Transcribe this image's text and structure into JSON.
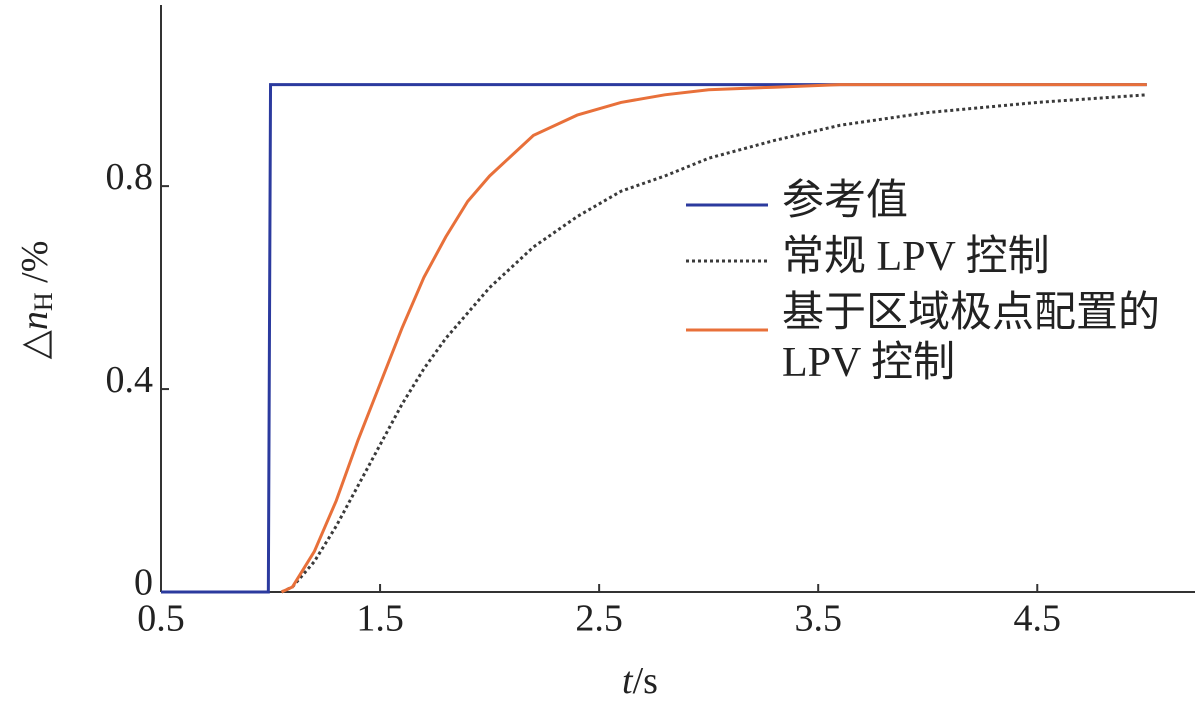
{
  "chart_data": {
    "type": "line",
    "ylabel": [
      "△",
      "n",
      "H",
      " /%"
    ],
    "xlabel": [
      "t",
      "/s"
    ],
    "x": [
      0.5,
      0.99,
      1.0,
      1.05,
      1.1,
      1.2,
      1.3,
      1.4,
      1.5,
      1.6,
      1.7,
      1.8,
      1.9,
      2.0,
      2.2,
      2.4,
      2.6,
      2.8,
      3.0,
      3.3,
      3.6,
      4.0,
      4.5,
      5.0
    ],
    "series": [
      {
        "name": "参考值",
        "color": "#2b3a9e",
        "style": "solid",
        "values": [
          0,
          0,
          1.0,
          1.0,
          1.0,
          1.0,
          1.0,
          1.0,
          1.0,
          1.0,
          1.0,
          1.0,
          1.0,
          1.0,
          1.0,
          1.0,
          1.0,
          1.0,
          1.0,
          1.0,
          1.0,
          1.0,
          1.0,
          1.0
        ]
      },
      {
        "name": "常规 LPV 控制",
        "color": "#3a3a3a",
        "style": "dotted",
        "values": [
          null,
          null,
          null,
          0,
          0.01,
          0.06,
          0.13,
          0.21,
          0.29,
          0.37,
          0.44,
          0.5,
          0.55,
          0.6,
          0.68,
          0.74,
          0.79,
          0.82,
          0.855,
          0.89,
          0.92,
          0.945,
          0.965,
          0.98
        ]
      },
      {
        "name": "基于区域极点配置的LPV 控制",
        "color": "#e8703a",
        "style": "solid",
        "values": [
          null,
          null,
          null,
          0,
          0.01,
          0.08,
          0.18,
          0.3,
          0.41,
          0.52,
          0.62,
          0.7,
          0.77,
          0.82,
          0.9,
          0.94,
          0.965,
          0.98,
          0.99,
          0.995,
          1.0,
          1.0,
          1.0,
          1.0
        ]
      }
    ],
    "xlim": [
      0.5,
      5.22
    ],
    "ylim": [
      0,
      1.157
    ],
    "xticks": [
      0.5,
      1.5,
      2.5,
      3.5,
      4.5
    ],
    "yticks": [
      0,
      0.4,
      0.8
    ],
    "grid": false
  }
}
